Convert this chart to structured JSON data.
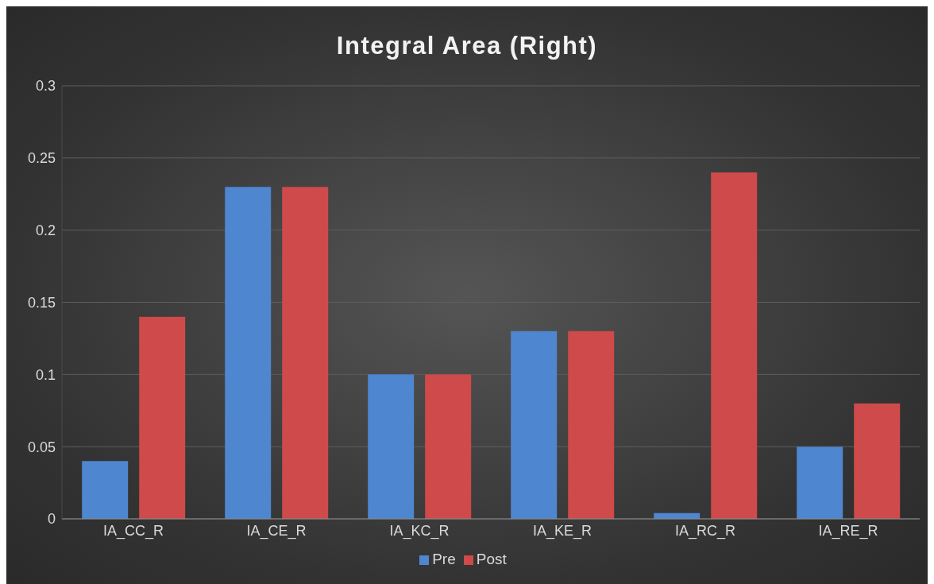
{
  "chart_data": {
    "type": "bar",
    "title": "Integral Area (Right)",
    "categories": [
      "IA_CC_R",
      "IA_CE_R",
      "IA_KC_R",
      "IA_KE_R",
      "IA_RC_R",
      "IA_RE_R"
    ],
    "series": [
      {
        "name": "Pre",
        "color": "#4f86d0",
        "values": [
          0.04,
          0.23,
          0.1,
          0.13,
          0.004,
          0.05
        ]
      },
      {
        "name": "Post",
        "color": "#cf4a4a",
        "values": [
          0.14,
          0.23,
          0.1,
          0.13,
          0.24,
          0.08
        ]
      }
    ],
    "ylim": [
      0,
      0.3
    ],
    "yticks": [
      0,
      0.05,
      0.1,
      0.15,
      0.2,
      0.25,
      0.3
    ],
    "grid": "y",
    "legend": "bottom"
  }
}
